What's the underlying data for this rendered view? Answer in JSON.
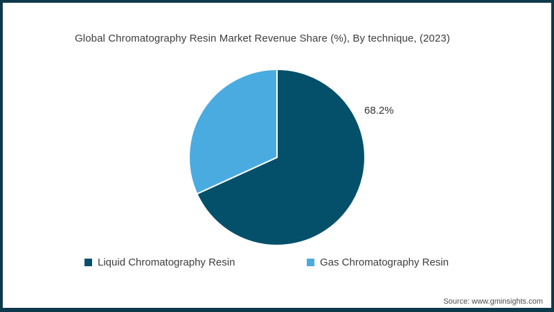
{
  "frame": {
    "border_color": "#0d3a4a",
    "background": "#ffffff"
  },
  "title": "Global Chromatography Resin Market Revenue Share (%), By technique, (2023)",
  "source": "Source: www.gminsights.com",
  "chart_data": {
    "type": "pie",
    "title": "Global Chromatography Resin Market Revenue Share (%), By technique, (2023)",
    "unit": "%",
    "start_angle_deg": 0,
    "direction": "clockwise",
    "legend_position": "bottom",
    "slice_separator_color": "#ffffff",
    "slices": [
      {
        "label": "Liquid Chromatography Resin",
        "value": 68.2,
        "color": "#04506a",
        "data_label": "68.2%"
      },
      {
        "label": "Gas Chromatography Resin",
        "value": 31.8,
        "color": "#4aabe1",
        "data_label": ""
      }
    ]
  }
}
